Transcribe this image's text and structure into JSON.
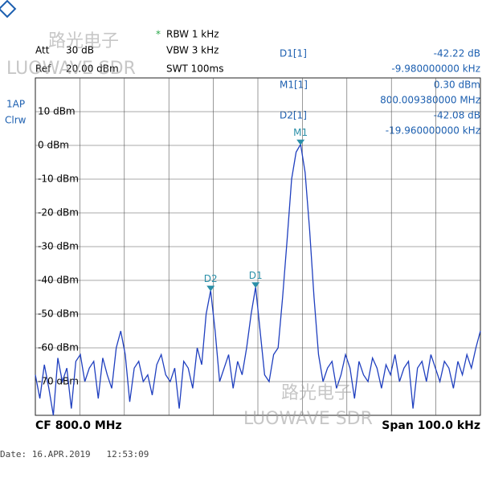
{
  "header": {
    "att_label": "Att",
    "att": "30 dB",
    "ref_label": "Ref",
    "ref": "20.00 dBm",
    "star": "*",
    "rbw": "RBW 1 kHz",
    "vbw": "VBW 3 kHz",
    "swt": "SWT 100ms"
  },
  "trace_label": [
    "1AP",
    "Clrw"
  ],
  "marker_table": [
    {
      "name": "D1[1]",
      "level": "-42.22 dB",
      "freq": "-9.980000000 kHz"
    },
    {
      "name": "M1[1]",
      "level": "0.30 dBm",
      "freq": "800.009380000 MHz"
    },
    {
      "name": "D2[1]",
      "level": "-42.08 dB",
      "freq": "-19.960000000 kHz"
    }
  ],
  "watermark": [
    "路光电子",
    "LUOWAVE SDR"
  ],
  "chart_data": {
    "type": "line",
    "color": "#1f3fbf",
    "grid": true,
    "ylim": [
      -80,
      20
    ],
    "yticks": [
      {
        "value": 10,
        "label": "10 dBm"
      },
      {
        "value": 0,
        "label": "0 dBm"
      },
      {
        "value": -10,
        "label": "-10 dBm"
      },
      {
        "value": -20,
        "label": "-20 dBm"
      },
      {
        "value": -30,
        "label": "-30 dBm"
      },
      {
        "value": -40,
        "label": "-40 dBm"
      },
      {
        "value": -50,
        "label": "-50 dBm"
      },
      {
        "value": -60,
        "label": "-60 dBm"
      },
      {
        "value": -70,
        "label": "-70 dBm"
      }
    ],
    "markers": [
      "M1",
      "D1",
      "D2"
    ],
    "categories": [
      null,
      null,
      null,
      null,
      null,
      null,
      null,
      null,
      null,
      null,
      null,
      null,
      null,
      null,
      null,
      null,
      null,
      null,
      null,
      null,
      null,
      null,
      null,
      null,
      null,
      null,
      null,
      null,
      null,
      null,
      null,
      null,
      null,
      null,
      null,
      null,
      null,
      null,
      null,
      null,
      null,
      null,
      null,
      null,
      null,
      null,
      null,
      null,
      null,
      null,
      null,
      null,
      null,
      null,
      null,
      null,
      null,
      null,
      null,
      null,
      null,
      null,
      null,
      null,
      null,
      null,
      null,
      null,
      null,
      null,
      null,
      null,
      null,
      null,
      null,
      null,
      null,
      null,
      null,
      null,
      null,
      null,
      null,
      null,
      null,
      null,
      null,
      null,
      null,
      null,
      null,
      null,
      null,
      null,
      null,
      null,
      null,
      null,
      null,
      null
    ],
    "values": [
      -68,
      -75,
      -65,
      -72,
      -80,
      -63,
      -70,
      -66,
      -78,
      -64,
      -62,
      -70,
      -66,
      -64,
      -75,
      -63,
      -68,
      -72,
      -60,
      -55,
      -62,
      -76,
      -66,
      -64,
      -70,
      -68,
      -74,
      -65,
      -62,
      -68,
      -70,
      -66,
      -78,
      -64,
      -66,
      -72,
      -60,
      -65,
      -50,
      -43,
      -55,
      -70,
      -66,
      -62,
      -72,
      -64,
      -68,
      -60,
      -50,
      -42,
      -55,
      -68,
      -70,
      -62,
      -60,
      -45,
      -28,
      -10,
      -2,
      0.3,
      -8,
      -25,
      -45,
      -62,
      -70,
      -66,
      -64,
      -72,
      -68,
      -62,
      -66,
      -75,
      -64,
      -68,
      -70,
      -63,
      -66,
      -72,
      -65,
      -68,
      -62,
      -70,
      -66,
      -64,
      -78,
      -66,
      -64,
      -70,
      -62,
      -66,
      -70,
      -64,
      -66,
      -72,
      -64,
      -68,
      -62,
      -66,
      -60,
      -55
    ]
  },
  "footer": {
    "cf": "CF 800.0 MHz",
    "span": "Span 100.0 kHz",
    "date": "Date: 16.APR.2019   12:53:09"
  }
}
